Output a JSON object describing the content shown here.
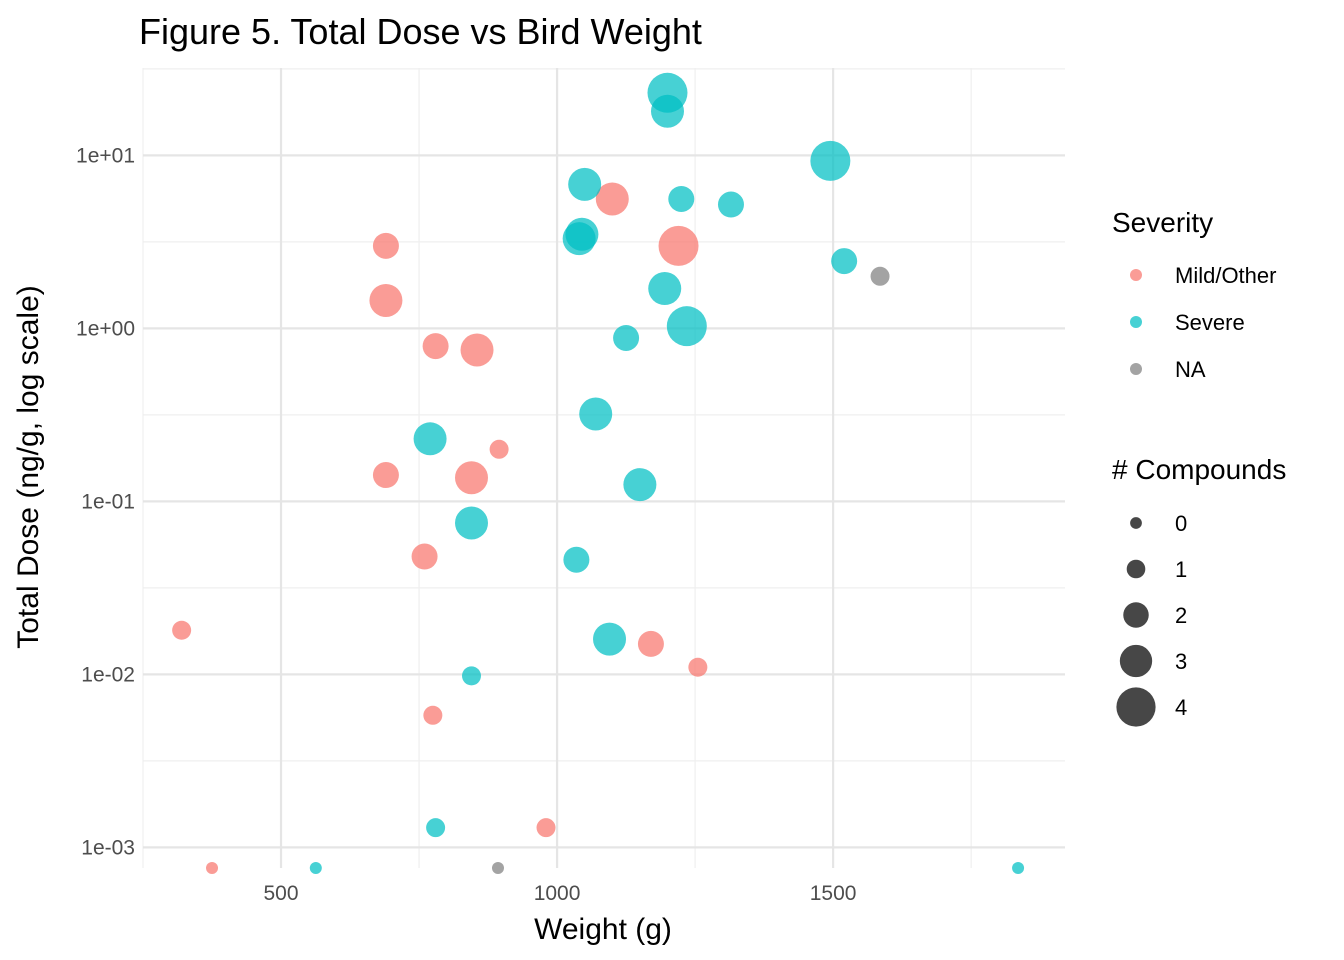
{
  "chart_data": {
    "type": "scatter",
    "title": "Figure 5. Total Dose vs Bird Weight",
    "xlabel": "Weight (g)",
    "ylabel": "Total Dose (ng/g, log scale)",
    "xlim": [
      250,
      1920
    ],
    "ylim": [
      0.00076,
      32
    ],
    "y_scale": "log10",
    "x_ticks": [
      500,
      1000,
      1500
    ],
    "x_tick_labels": [
      "500",
      "1000",
      "1500"
    ],
    "x_minor_ticks": [
      250,
      750,
      1250,
      1750
    ],
    "y_ticks": [
      0.001,
      0.01,
      0.1,
      1,
      10
    ],
    "y_tick_labels": [
      "1e-03",
      "1e-02",
      "1e-01",
      "1e+00",
      "1e+01"
    ],
    "grid": true,
    "colors": {
      "Mild/Other": "#F8766D",
      "Severe": "#00BFC4",
      "NA": "#7F7F7F"
    },
    "legend": {
      "placement": "right",
      "color_title": "Severity",
      "color_entries": [
        "Mild/Other",
        "Severe",
        "NA"
      ],
      "size_title": "# Compounds",
      "size_entries": [
        0,
        1,
        2,
        3,
        4
      ]
    },
    "series": [
      {
        "name": "Mild/Other",
        "points": [
          {
            "x": 320,
            "y": 0.018,
            "n": 1
          },
          {
            "x": 375,
            "y": 0.00076,
            "n": 0
          },
          {
            "x": 690,
            "y": 3.0,
            "n": 2
          },
          {
            "x": 690,
            "y": 1.45,
            "n": 3
          },
          {
            "x": 690,
            "y": 0.142,
            "n": 2
          },
          {
            "x": 760,
            "y": 0.048,
            "n": 2
          },
          {
            "x": 775,
            "y": 0.0058,
            "n": 1
          },
          {
            "x": 780,
            "y": 0.79,
            "n": 2
          },
          {
            "x": 845,
            "y": 0.137,
            "n": 3
          },
          {
            "x": 855,
            "y": 0.75,
            "n": 3
          },
          {
            "x": 895,
            "y": 0.2,
            "n": 1
          },
          {
            "x": 980,
            "y": 0.0013,
            "n": 1
          },
          {
            "x": 1100,
            "y": 5.6,
            "n": 3
          },
          {
            "x": 1170,
            "y": 0.015,
            "n": 2
          },
          {
            "x": 1220,
            "y": 3.0,
            "n": 4
          },
          {
            "x": 1255,
            "y": 0.011,
            "n": 1
          }
        ]
      },
      {
        "name": "Severe",
        "points": [
          {
            "x": 563,
            "y": 0.00076,
            "n": 0
          },
          {
            "x": 770,
            "y": 0.23,
            "n": 3
          },
          {
            "x": 780,
            "y": 0.0013,
            "n": 1
          },
          {
            "x": 845,
            "y": 0.075,
            "n": 3
          },
          {
            "x": 845,
            "y": 0.0098,
            "n": 1
          },
          {
            "x": 1035,
            "y": 0.046,
            "n": 2
          },
          {
            "x": 1040,
            "y": 3.3,
            "n": 3
          },
          {
            "x": 1045,
            "y": 3.5,
            "n": 3
          },
          {
            "x": 1050,
            "y": 6.8,
            "n": 3
          },
          {
            "x": 1070,
            "y": 0.32,
            "n": 3
          },
          {
            "x": 1095,
            "y": 0.016,
            "n": 3
          },
          {
            "x": 1125,
            "y": 0.88,
            "n": 2
          },
          {
            "x": 1150,
            "y": 0.125,
            "n": 3
          },
          {
            "x": 1195,
            "y": 1.7,
            "n": 3
          },
          {
            "x": 1200,
            "y": 23,
            "n": 4
          },
          {
            "x": 1200,
            "y": 18,
            "n": 3
          },
          {
            "x": 1225,
            "y": 5.6,
            "n": 2
          },
          {
            "x": 1235,
            "y": 1.03,
            "n": 4
          },
          {
            "x": 1315,
            "y": 5.2,
            "n": 2
          },
          {
            "x": 1495,
            "y": 9.3,
            "n": 4
          },
          {
            "x": 1520,
            "y": 2.45,
            "n": 2
          },
          {
            "x": 1835,
            "y": 0.00076,
            "n": 0
          }
        ]
      },
      {
        "name": "NA",
        "points": [
          {
            "x": 893,
            "y": 0.00076,
            "n": 0
          },
          {
            "x": 1585,
            "y": 2.0,
            "n": 1
          }
        ]
      }
    ]
  }
}
